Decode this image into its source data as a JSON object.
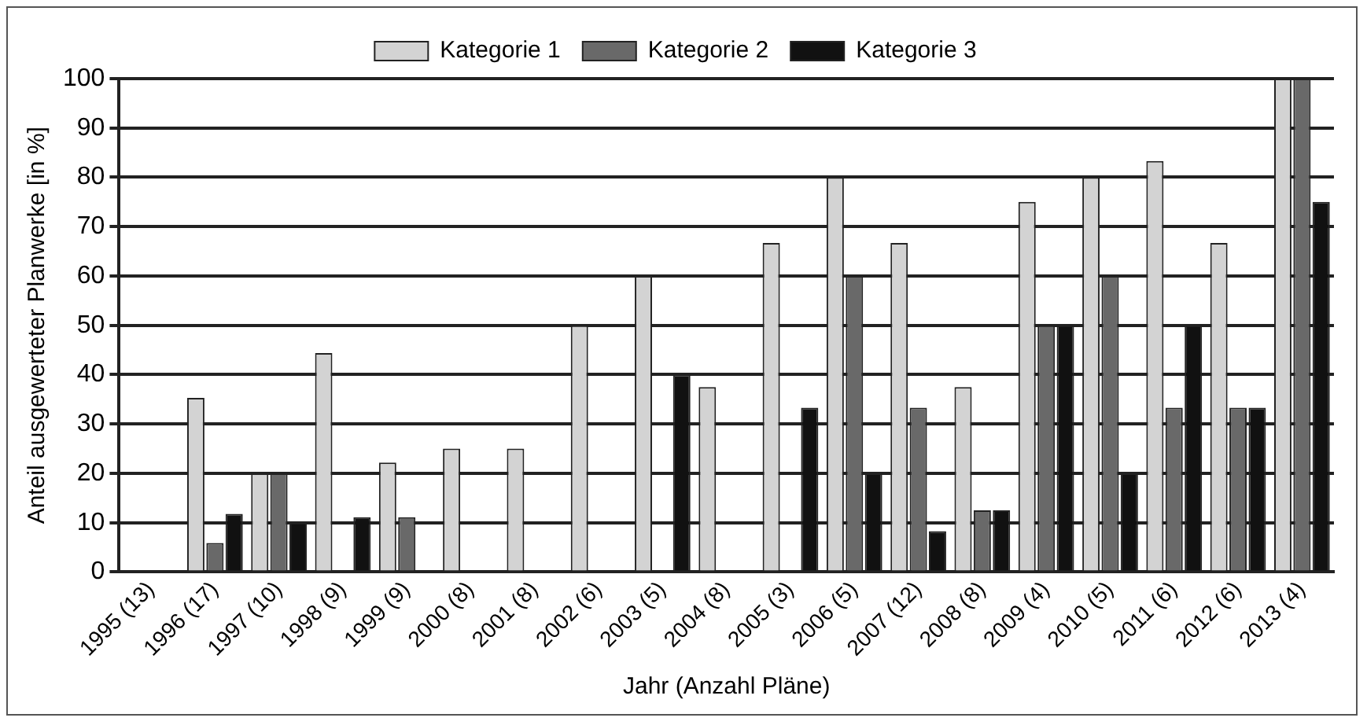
{
  "chart_data": {
    "type": "bar",
    "xlabel": "Jahr (Anzahl Pläne)",
    "ylabel": "Anteil ausgewerteter Planwerke [in %]",
    "categories": [
      "1995 (13)",
      "1996 (17)",
      "1997 (10)",
      "1998 (9)",
      "1999 (9)",
      "2000 (8)",
      "2001 (8)",
      "2002 (6)",
      "2003 (5)",
      "2004 (8)",
      "2005 (3)",
      "2006 (5)",
      "2007 (12)",
      "2008 (8)",
      "2009 (4)",
      "2010 (5)",
      "2011 (6)",
      "2012 (6)",
      "2013 (4)"
    ],
    "series": [
      {
        "name": "Kategorie 1",
        "color": "#d3d3d3",
        "values": [
          0,
          35.3,
          20,
          44.4,
          22.2,
          25,
          25,
          50,
          60,
          37.5,
          66.7,
          80,
          66.7,
          37.5,
          75,
          80,
          83.3,
          66.7,
          100
        ]
      },
      {
        "name": "Kategorie 2",
        "color": "#696969",
        "values": [
          0,
          5.9,
          20,
          0,
          11.1,
          0,
          0,
          0,
          0,
          0,
          0,
          60,
          33.3,
          12.5,
          50,
          60,
          33.3,
          33.3,
          100
        ]
      },
      {
        "name": "Kategorie 3",
        "color": "#111111",
        "values": [
          0,
          11.8,
          10,
          11.1,
          0,
          0,
          0,
          0,
          40,
          0,
          33.3,
          20,
          8.3,
          12.5,
          50,
          20,
          50,
          33.3,
          75
        ]
      }
    ],
    "ylim": [
      0,
      100
    ],
    "yticks": [
      0,
      10,
      20,
      30,
      40,
      50,
      60,
      70,
      80,
      90,
      100
    ],
    "grid": "y",
    "legend": "top"
  }
}
